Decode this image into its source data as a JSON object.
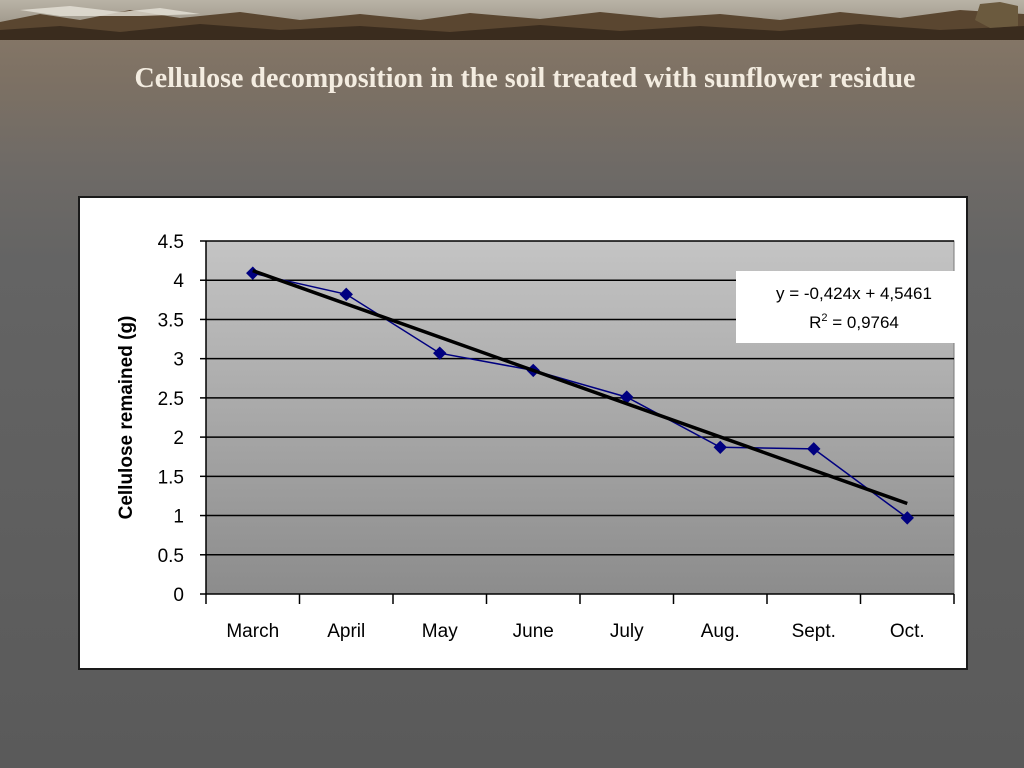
{
  "slide": {
    "title": "Cellulose decomposition in the soil treated with sunflower residue"
  },
  "colors": {
    "plot_background_top": "#c4c4c4",
    "plot_background_bottom": "#8c8c8c",
    "series_color": "#000080",
    "trendline_color": "#000000",
    "gridline_color": "#000000"
  },
  "chart_data": {
    "type": "line",
    "title": "",
    "xlabel": "",
    "ylabel": "Cellulose remained (g)",
    "categories": [
      "March",
      "April",
      "May",
      "June",
      "July",
      "Aug.",
      "Sept.",
      "Oct."
    ],
    "series": [
      {
        "values": [
          4.09,
          3.82,
          3.07,
          2.85,
          2.51,
          1.87,
          1.85,
          0.97
        ],
        "marker": "diamond"
      }
    ],
    "trendline": {
      "type": "linear",
      "slope": -0.424,
      "intercept": 4.5461,
      "equation_label": "y = -0,424x + 4,5461",
      "r2_prefix": "R",
      "r2_sup": "2",
      "r2_suffix": " = 0,9764"
    },
    "ylim": [
      0,
      4.5
    ],
    "yticks": [
      "0",
      "0.5",
      "1",
      "1.5",
      "2",
      "2.5",
      "3",
      "3.5",
      "4",
      "4.5"
    ],
    "grid": true,
    "legend": "none"
  }
}
